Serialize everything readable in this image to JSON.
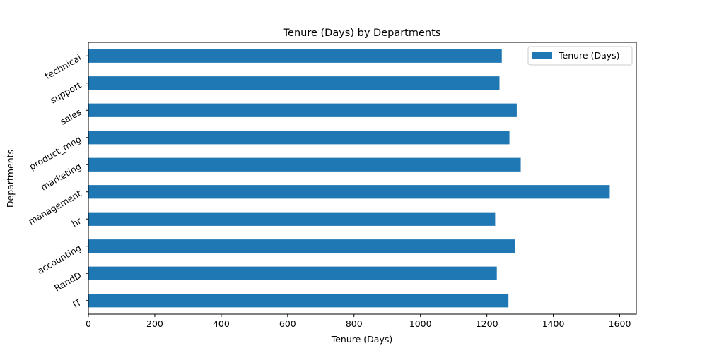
{
  "chart_data": {
    "type": "bar",
    "orientation": "horizontal",
    "title": "Tenure (Days) by Departments",
    "xlabel": "Tenure (Days)",
    "ylabel": "Departments",
    "categories": [
      "IT",
      "RandD",
      "accounting",
      "hr",
      "management",
      "marketing",
      "product_mng",
      "sales",
      "support",
      "technical"
    ],
    "series": [
      {
        "name": "Tenure (Days)",
        "color": "#1f77b4",
        "values": [
          1265,
          1230,
          1285,
          1225,
          1570,
          1302,
          1268,
          1290,
          1238,
          1245
        ]
      }
    ],
    "xlim": [
      0,
      1650
    ],
    "xticks": [
      0,
      200,
      400,
      600,
      800,
      1000,
      1200,
      1400,
      1600
    ],
    "grid": false,
    "legend_position": "top-right"
  }
}
